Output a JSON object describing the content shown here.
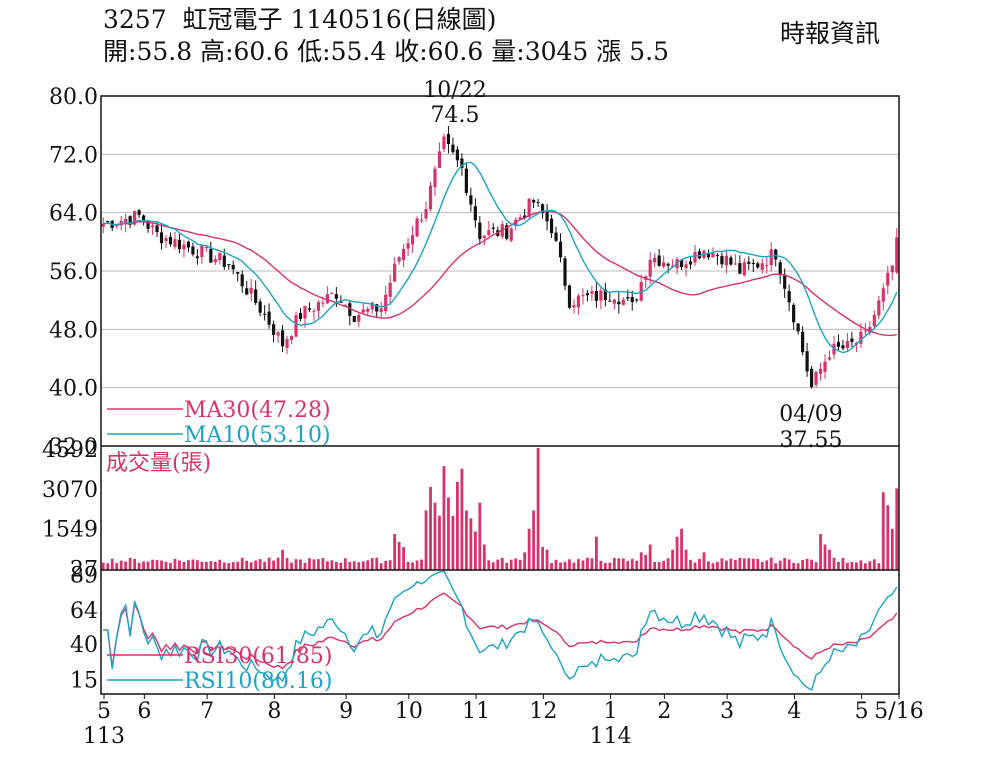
{
  "header": {
    "stock_code": "3257",
    "stock_name": "虹冠電子",
    "date_code": "1140516(日線圖)",
    "source": "時報資訊",
    "stats": {
      "open_label": "開:",
      "open": "55.8",
      "high_label": "高:",
      "high": "60.6",
      "low_label": "低:",
      "low": "55.4",
      "close_label": "收:",
      "close": "60.6",
      "volume_label": "量:",
      "volume": "3045",
      "change_label": "漲",
      "change": "5.5"
    }
  },
  "chart_data": [
    {
      "type": "candlestick",
      "ylim": [
        32.0,
        80.0
      ],
      "yticks": [
        "80.0",
        "72.0",
        "64.0",
        "56.0",
        "48.0",
        "40.0",
        "32.0"
      ],
      "annotations": [
        {
          "date": "10/22",
          "value": "74.5"
        },
        {
          "date": "04/09",
          "value": "37.55"
        }
      ],
      "legend": [
        {
          "label": "MA30(47.28)",
          "color": "#d6336c"
        },
        {
          "label": "MA10(53.10)",
          "color": "#1ba3c6"
        }
      ],
      "colors": {
        "up": "#d6336c",
        "down": "#111111",
        "ma30": "#d6336c",
        "ma10": "#1ba3c6"
      },
      "anchors": [
        [
          0,
          62.5
        ],
        [
          8,
          63.5
        ],
        [
          12,
          61
        ],
        [
          20,
          59
        ],
        [
          28,
          57
        ],
        [
          36,
          50
        ],
        [
          40,
          46
        ],
        [
          44,
          50
        ],
        [
          52,
          53
        ],
        [
          56,
          50
        ],
        [
          62,
          51
        ],
        [
          66,
          58
        ],
        [
          72,
          65
        ],
        [
          76,
          73.5
        ],
        [
          80,
          70
        ],
        [
          84,
          61
        ],
        [
          90,
          61.5
        ],
        [
          96,
          65.5
        ],
        [
          100,
          62
        ],
        [
          104,
          52
        ],
        [
          110,
          52.5
        ],
        [
          114,
          53
        ],
        [
          118,
          51
        ],
        [
          122,
          58
        ],
        [
          128,
          57
        ],
        [
          134,
          59
        ],
        [
          138,
          58
        ],
        [
          142,
          56
        ],
        [
          146,
          57
        ],
        [
          150,
          58.5
        ],
        [
          154,
          50
        ],
        [
          158,
          40
        ],
        [
          162,
          45
        ],
        [
          166,
          45.5
        ],
        [
          170,
          47
        ],
        [
          174,
          53
        ],
        [
          177,
          58.5
        ]
      ],
      "last_close": 60.6,
      "ma30_last": 47.28,
      "ma10_last": 53.1
    },
    {
      "type": "bar",
      "series_label": "成交量(張)",
      "ylim": [
        0,
        4592
      ],
      "yticks": [
        "4592",
        "3070",
        "1549",
        "27"
      ],
      "color": "#d6336c",
      "base": 180,
      "spikes": [
        [
          40,
          700
        ],
        [
          65,
          1300
        ],
        [
          66,
          1000
        ],
        [
          67,
          800
        ],
        [
          72,
          2200
        ],
        [
          73,
          3100
        ],
        [
          74,
          2500
        ],
        [
          75,
          2000
        ],
        [
          76,
          3900
        ],
        [
          77,
          2700
        ],
        [
          78,
          2000
        ],
        [
          79,
          3300
        ],
        [
          80,
          3800
        ],
        [
          81,
          2200
        ],
        [
          82,
          1900
        ],
        [
          83,
          1400
        ],
        [
          84,
          2500
        ],
        [
          85,
          900
        ],
        [
          94,
          600
        ],
        [
          95,
          1500
        ],
        [
          96,
          2200
        ],
        [
          97,
          4592
        ],
        [
          98,
          800
        ],
        [
          99,
          700
        ],
        [
          110,
          1200
        ],
        [
          120,
          600
        ],
        [
          121,
          500
        ],
        [
          122,
          900
        ],
        [
          127,
          700
        ],
        [
          128,
          1200
        ],
        [
          129,
          1500
        ],
        [
          130,
          700
        ],
        [
          134,
          600
        ],
        [
          160,
          1300
        ],
        [
          161,
          900
        ],
        [
          162,
          700
        ],
        [
          174,
          2900
        ],
        [
          175,
          2400
        ],
        [
          176,
          1500
        ],
        [
          177,
          3045
        ]
      ]
    },
    {
      "type": "line",
      "ylim": [
        5,
        92
      ],
      "yticks": [
        "89",
        "64",
        "40",
        "15"
      ],
      "legend": [
        {
          "label": "RSI30(61.85)",
          "color": "#d6336c"
        },
        {
          "label": "RSI10(80.16)",
          "color": "#1ba3c6"
        }
      ],
      "rsi30_last": 61.85,
      "rsi10_last": 80.16
    }
  ],
  "x_axis": {
    "ticks": [
      {
        "label": "5",
        "bar": 0
      },
      {
        "label": "6",
        "bar": 9
      },
      {
        "label": "7",
        "bar": 23
      },
      {
        "label": "8",
        "bar": 38
      },
      {
        "label": "9",
        "bar": 54
      },
      {
        "label": "10",
        "bar": 68
      },
      {
        "label": "11",
        "bar": 83
      },
      {
        "label": "12",
        "bar": 98
      },
      {
        "label": "1",
        "bar": 113
      },
      {
        "label": "2",
        "bar": 125
      },
      {
        "label": "3",
        "bar": 139
      },
      {
        "label": "4",
        "bar": 154
      },
      {
        "label": "5",
        "bar": 169
      },
      {
        "label": "5/16",
        "bar": 177
      }
    ],
    "year_labels": [
      {
        "label": "113",
        "bar": 0
      },
      {
        "label": "114",
        "bar": 113
      }
    ]
  }
}
